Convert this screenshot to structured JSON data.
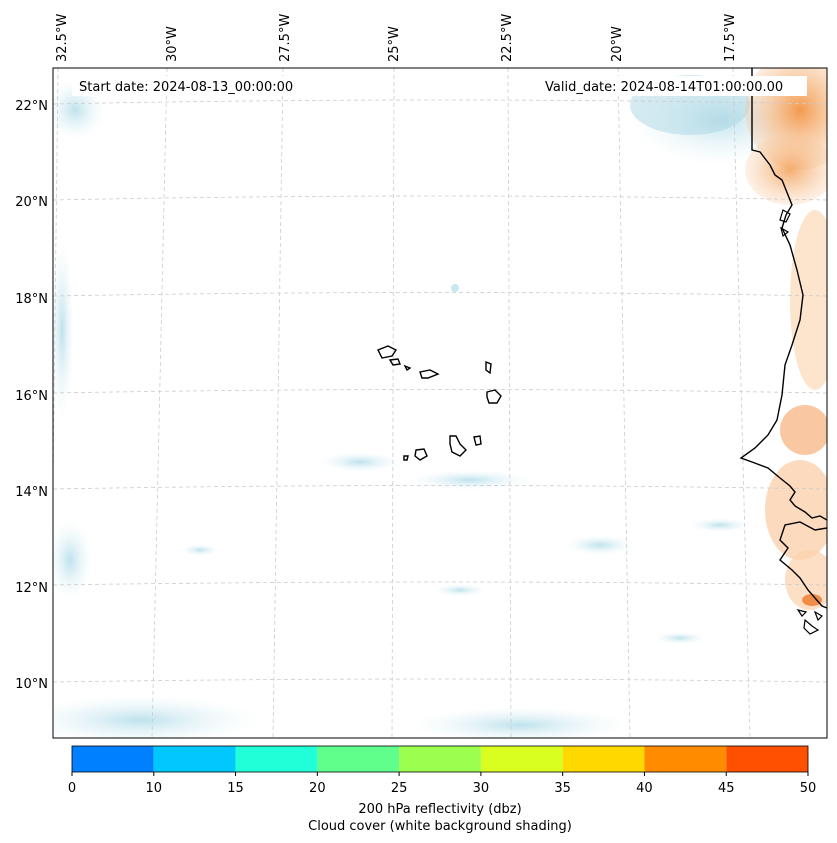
{
  "map": {
    "start_date": "Start date: 2024-08-13_00:00:00",
    "valid_date": "Valid_date: 2024-08-14T01:00:00.00",
    "lon_labels": [
      "32.5°W",
      "30°W",
      "27.5°W",
      "25°W",
      "22.5°W",
      "20°W",
      "17.5°W"
    ],
    "lat_labels": [
      "22°N",
      "20°N",
      "18°N",
      "16°N",
      "14°N",
      "12°N",
      "10°N"
    ],
    "colorbar": {
      "ticks": [
        "0",
        "10",
        "15",
        "20",
        "25",
        "30",
        "35",
        "40",
        "45",
        "50"
      ],
      "colors": [
        "#0080ff",
        "#00c8ff",
        "#20ffd8",
        "#60ff8c",
        "#9cff50",
        "#d8ff20",
        "#ffd800",
        "#ff8c00",
        "#ff5000"
      ],
      "label": "200 hPa reflectivity (dbz)",
      "sublabel": "Cloud cover (white background shading)"
    },
    "colors": {
      "cloud": "#bfe3ee",
      "land_reflectivity": "#f4a460",
      "coastline": "#000000",
      "grid": "#cccccc"
    }
  }
}
